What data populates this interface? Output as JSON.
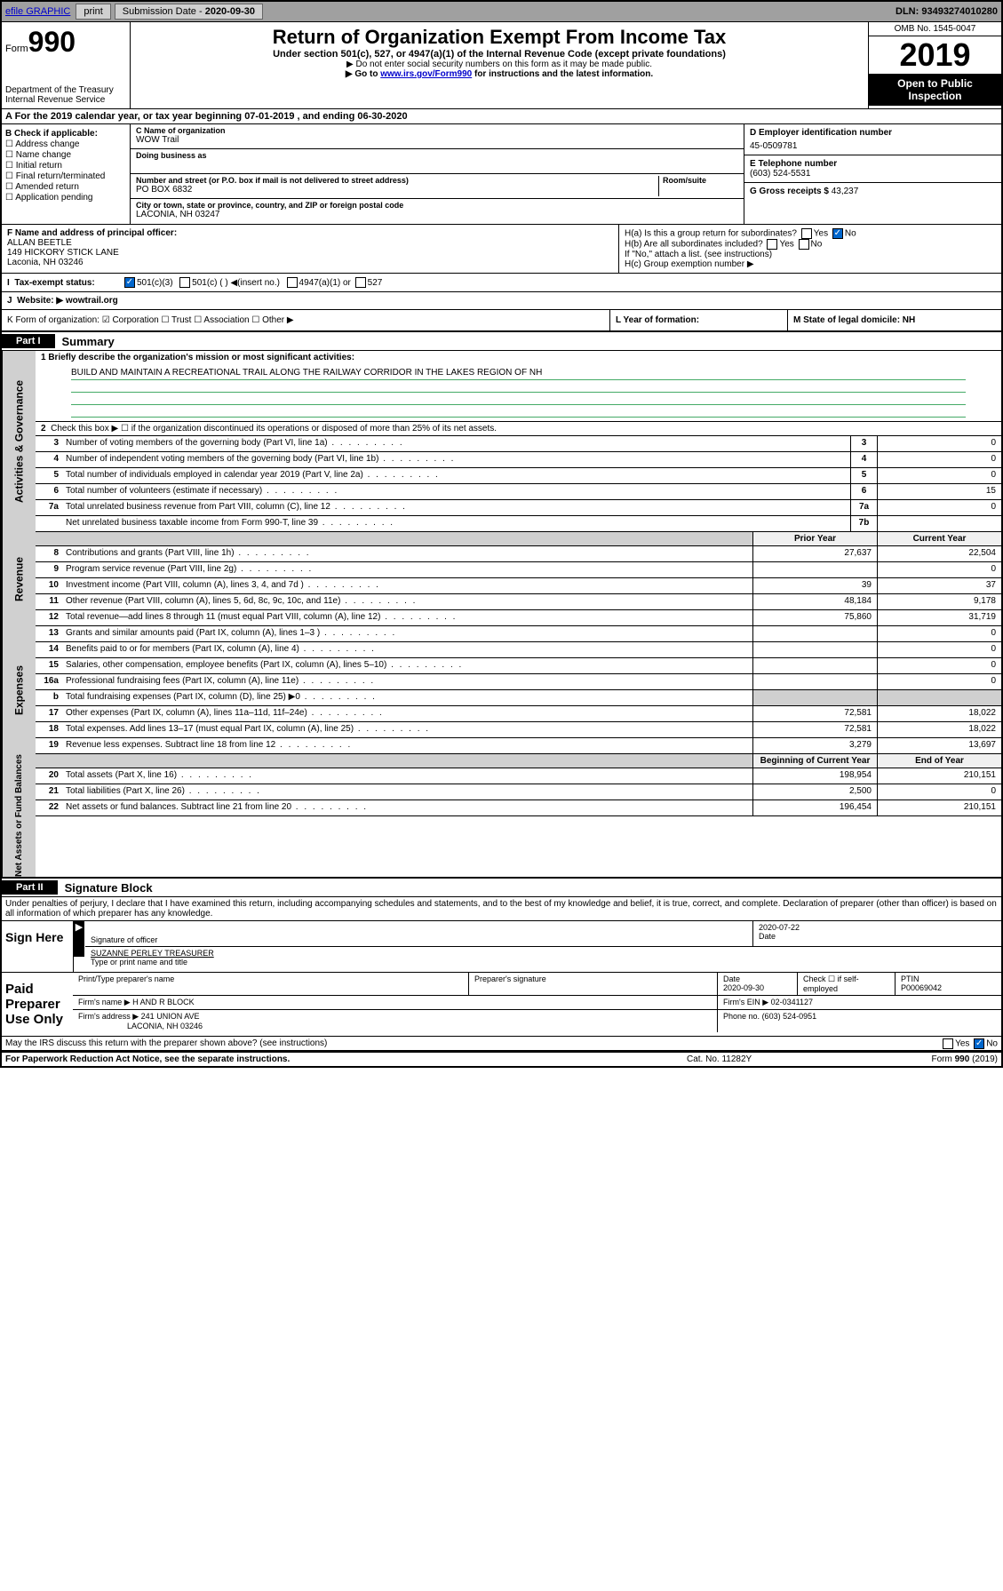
{
  "topbar": {
    "efile": "efile GRAPHIC",
    "print": "print",
    "sub_label": "Submission Date - ",
    "sub_date": "2020-09-30",
    "dln": "DLN: 93493274010280"
  },
  "header": {
    "form_prefix": "Form",
    "form_num": "990",
    "dept": "Department of the Treasury\nInternal Revenue Service",
    "title": "Return of Organization Exempt From Income Tax",
    "subtitle": "Under section 501(c), 527, or 4947(a)(1) of the Internal Revenue Code (except private foundations)",
    "note1": "▶ Do not enter social security numbers on this form as it may be made public.",
    "note2_pre": "▶ Go to ",
    "note2_link": "www.irs.gov/Form990",
    "note2_post": " for instructions and the latest information.",
    "omb": "OMB No. 1545-0047",
    "year": "2019",
    "open": "Open to Public Inspection"
  },
  "rowA": "A For the 2019 calendar year, or tax year beginning 07-01-2019    , and ending 06-30-2020",
  "colB": {
    "label": "B Check if applicable:",
    "items": [
      "☐ Address change",
      "☐ Name change",
      "☐ Initial return",
      "☐ Final return/terminated",
      "☐ Amended return",
      "☐ Application pending"
    ]
  },
  "colC": {
    "name_label": "C Name of organization",
    "name": "WOW Trail",
    "dba_label": "Doing business as",
    "addr_label": "Number and street (or P.O. box if mail is not delivered to street address)",
    "room_label": "Room/suite",
    "addr": "PO BOX 6832",
    "city_label": "City or town, state or province, country, and ZIP or foreign postal code",
    "city": "LACONIA, NH  03247"
  },
  "colD": {
    "ein_label": "D Employer identification number",
    "ein": "45-0509781",
    "phone_label": "E Telephone number",
    "phone": "(603) 524-5531",
    "gross_label": "G Gross receipts $ ",
    "gross": "43,237"
  },
  "rowF": {
    "label": "F  Name and address of principal officer:",
    "name": "ALLAN BEETLE",
    "addr1": "149 HICKORY STICK LANE",
    "addr2": "Laconia, NH  03246"
  },
  "rowH": {
    "ha": "H(a)  Is this a group return for subordinates?",
    "hb": "H(b)  Are all subordinates included?",
    "hb_note": "If \"No,\" attach a list. (see instructions)",
    "hc": "H(c)  Group exemption number ▶",
    "yes": "Yes",
    "no": "No"
  },
  "rowI": {
    "label": "Tax-exempt status:",
    "opts": [
      "501(c)(3)",
      "501(c) (  ) ◀(insert no.)",
      "4947(a)(1) or",
      "527"
    ]
  },
  "rowJ": {
    "label": "Website: ▶",
    "val": "  wowtrail.org"
  },
  "rowK": {
    "k1": "K Form of organization:  ☑ Corporation  ☐ Trust  ☐ Association  ☐ Other ▶",
    "k2": "L Year of formation:",
    "k3": "M State of legal domicile: NH"
  },
  "part1": {
    "hdr": "Part I",
    "title": "Summary",
    "q1": "1  Briefly describe the organization's mission or most significant activities:",
    "mission": "BUILD AND MAINTAIN A RECREATIONAL TRAIL ALONG THE RAILWAY CORRIDOR IN THE LAKES REGION OF NH",
    "q2": "Check this box ▶ ☐  if the organization discontinued its operations or disposed of more than 25% of its net assets."
  },
  "sections": {
    "gov": "Activities & Governance",
    "rev": "Revenue",
    "exp": "Expenses",
    "net": "Net Assets or Fund Balances"
  },
  "govRows": [
    {
      "n": "3",
      "d": "Number of voting members of the governing body (Part VI, line 1a)",
      "b": "3",
      "v": "0"
    },
    {
      "n": "4",
      "d": "Number of independent voting members of the governing body (Part VI, line 1b)",
      "b": "4",
      "v": "0"
    },
    {
      "n": "5",
      "d": "Total number of individuals employed in calendar year 2019 (Part V, line 2a)",
      "b": "5",
      "v": "0"
    },
    {
      "n": "6",
      "d": "Total number of volunteers (estimate if necessary)",
      "b": "6",
      "v": "15"
    },
    {
      "n": "7a",
      "d": "Total unrelated business revenue from Part VIII, column (C), line 12",
      "b": "7a",
      "v": "0"
    },
    {
      "n": "",
      "d": "Net unrelated business taxable income from Form 990-T, line 39",
      "b": "7b",
      "v": ""
    }
  ],
  "revHdr": {
    "prior": "Prior Year",
    "curr": "Current Year"
  },
  "revRows": [
    {
      "n": "8",
      "d": "Contributions and grants (Part VIII, line 1h)",
      "p": "27,637",
      "c": "22,504"
    },
    {
      "n": "9",
      "d": "Program service revenue (Part VIII, line 2g)",
      "p": "",
      "c": "0"
    },
    {
      "n": "10",
      "d": "Investment income (Part VIII, column (A), lines 3, 4, and 7d )",
      "p": "39",
      "c": "37"
    },
    {
      "n": "11",
      "d": "Other revenue (Part VIII, column (A), lines 5, 6d, 8c, 9c, 10c, and 11e)",
      "p": "48,184",
      "c": "9,178"
    },
    {
      "n": "12",
      "d": "Total revenue—add lines 8 through 11 (must equal Part VIII, column (A), line 12)",
      "p": "75,860",
      "c": "31,719"
    }
  ],
  "expRows": [
    {
      "n": "13",
      "d": "Grants and similar amounts paid (Part IX, column (A), lines 1–3 )",
      "p": "",
      "c": "0"
    },
    {
      "n": "14",
      "d": "Benefits paid to or for members (Part IX, column (A), line 4)",
      "p": "",
      "c": "0"
    },
    {
      "n": "15",
      "d": "Salaries, other compensation, employee benefits (Part IX, column (A), lines 5–10)",
      "p": "",
      "c": "0"
    },
    {
      "n": "16a",
      "d": "Professional fundraising fees (Part IX, column (A), line 11e)",
      "p": "",
      "c": "0"
    },
    {
      "n": "b",
      "d": "Total fundraising expenses (Part IX, column (D), line 25) ▶0",
      "p": "grey",
      "c": "grey"
    },
    {
      "n": "17",
      "d": "Other expenses (Part IX, column (A), lines 11a–11d, 11f–24e)",
      "p": "72,581",
      "c": "18,022"
    },
    {
      "n": "18",
      "d": "Total expenses. Add lines 13–17 (must equal Part IX, column (A), line 25)",
      "p": "72,581",
      "c": "18,022"
    },
    {
      "n": "19",
      "d": "Revenue less expenses. Subtract line 18 from line 12",
      "p": "3,279",
      "c": "13,697"
    }
  ],
  "netHdr": {
    "beg": "Beginning of Current Year",
    "end": "End of Year"
  },
  "netRows": [
    {
      "n": "20",
      "d": "Total assets (Part X, line 16)",
      "p": "198,954",
      "c": "210,151"
    },
    {
      "n": "21",
      "d": "Total liabilities (Part X, line 26)",
      "p": "2,500",
      "c": "0"
    },
    {
      "n": "22",
      "d": "Net assets or fund balances. Subtract line 21 from line 20",
      "p": "196,454",
      "c": "210,151"
    }
  ],
  "part2": {
    "hdr": "Part II",
    "title": "Signature Block",
    "declaration": "Under penalties of perjury, I declare that I have examined this return, including accompanying schedules and statements, and to the best of my knowledge and belief, it is true, correct, and complete. Declaration of preparer (other than officer) is based on all information of which preparer has any knowledge."
  },
  "sign": {
    "label": "Sign Here",
    "sig_label": "Signature of officer",
    "date": "2020-07-22",
    "date_label": "Date",
    "name": "SUZANNE PERLEY TREASURER",
    "name_label": "Type or print name and title"
  },
  "prep": {
    "label": "Paid Preparer Use Only",
    "name_label": "Print/Type preparer's name",
    "sig_label": "Preparer's signature",
    "date_label": "Date",
    "date": "2020-09-30",
    "check_label": "Check ☐ if self-employed",
    "ptin_label": "PTIN",
    "ptin": "P00069042",
    "firm_label": "Firm's name    ▶",
    "firm": "H AND R BLOCK",
    "ein_label": "Firm's EIN ▶",
    "ein": "02-0341127",
    "addr_label": "Firm's address ▶",
    "addr1": "241 UNION AVE",
    "addr2": "LACONIA, NH  03246",
    "phone_label": "Phone no.",
    "phone": "(603) 524-0951"
  },
  "discuss": "May the IRS discuss this return with the preparer shown above? (see instructions)",
  "footer": {
    "left": "For Paperwork Reduction Act Notice, see the separate instructions.",
    "mid": "Cat. No. 11282Y",
    "right": "Form 990 (2019)"
  }
}
